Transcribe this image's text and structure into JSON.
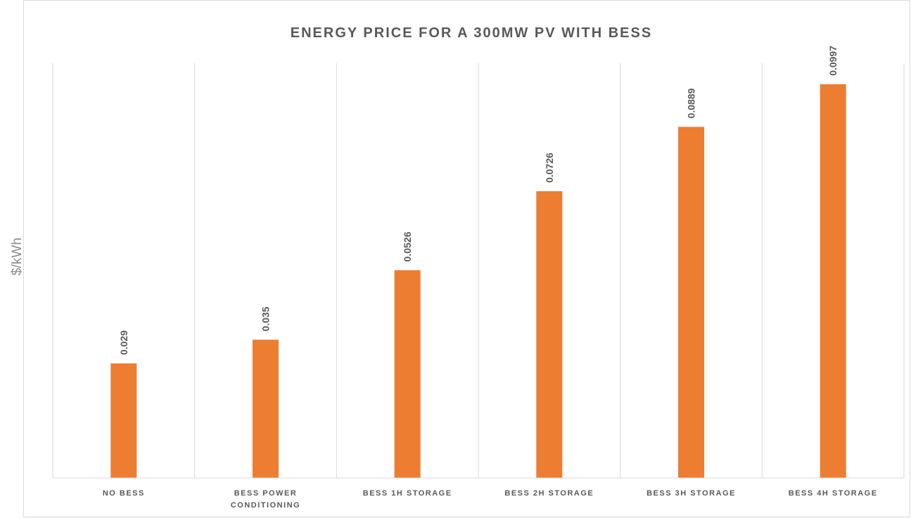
{
  "chart_data": {
    "type": "bar",
    "title": "ENERGY PRICE FOR A 300MW PV WITH BESS",
    "xlabel": "",
    "ylabel": "$/kWh",
    "categories": [
      [
        "NO BESS"
      ],
      [
        "BESS POWER",
        "CONDITIONING"
      ],
      [
        "BESS 1H STORAGE"
      ],
      [
        "BESS 2H STORAGE"
      ],
      [
        "BESS 3H STORAGE"
      ],
      [
        "BESS 4H STORAGE"
      ]
    ],
    "values": [
      0.029,
      0.035,
      0.0526,
      0.0726,
      0.0889,
      0.0997
    ],
    "value_labels": [
      "0.029",
      "0.035",
      "0.0526",
      "0.0726",
      "0.0889",
      "0.0997"
    ],
    "ylim": [
      0,
      0.105
    ],
    "grid": "vertical category separators",
    "legend": "none",
    "colors": {
      "bar": "#ED7D31",
      "gridline": "#d9d9d9",
      "border": "#d9d9d9",
      "text": "#595959",
      "axis_label": "#8c8c8c"
    }
  }
}
